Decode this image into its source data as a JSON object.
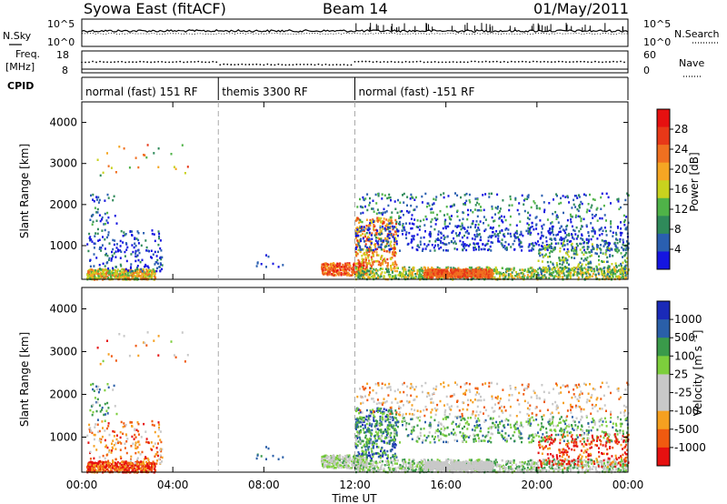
{
  "header": {
    "station": "Syowa East (fitACF)",
    "beam": "Beam 14",
    "date": "01/May/2011"
  },
  "strip_labels": {
    "nsky": "N.Sky",
    "nsearch": "N.Search",
    "freq_line1": "Freq.",
    "freq_line2": "[MHz]",
    "nave": "Nave",
    "cpid": "CPID",
    "nsky_top": "10^5",
    "nsky_bottom": "10^0",
    "nsearch_top": "10^5",
    "nsearch_bottom": "10^0",
    "freq_top": "18",
    "freq_bottom": "8",
    "nave_top": "60",
    "nave_bottom": "0"
  },
  "cpid_segments": [
    {
      "label": "normal (fast) 151 RF",
      "start_hour": 0
    },
    {
      "label": "themis 3300 RF",
      "start_hour": 6
    },
    {
      "label": "normal (fast) -151 RF",
      "start_hour": 12
    }
  ],
  "colors": {
    "power_scale": [
      "#1515e0",
      "#2a5fb0",
      "#2f8a5a",
      "#4fb348",
      "#c8d21e",
      "#f5a623",
      "#f07020",
      "#e83818",
      "#e61010"
    ],
    "velocity_scale": [
      "#e61010",
      "#f05a10",
      "#f5a020",
      "#c8c8c8",
      "#c8c8c8",
      "#7dce3c",
      "#3a9a4a",
      "#2a5fa8",
      "#1a2ab8"
    ]
  },
  "chart_data": [
    {
      "type": "heatmap",
      "panel": "power",
      "xlabel": "",
      "ylabel": "Slant Range [km]",
      "xlim": [
        0,
        24
      ],
      "ylim": [
        180,
        4500
      ],
      "y_ticks": [
        "1000",
        "2000",
        "3000",
        "4000"
      ],
      "colorbar": {
        "label": "Power [dB]",
        "ticks": [
          "4",
          "8",
          "12",
          "16",
          "20",
          "24",
          "28"
        ],
        "range": [
          0,
          32
        ]
      }
    },
    {
      "type": "heatmap",
      "panel": "velocity",
      "xlabel": "Time UT",
      "ylabel": "Slant Range [km]",
      "xlim": [
        0,
        24
      ],
      "ylim": [
        180,
        4500
      ],
      "x_ticks": [
        "00:00",
        "04:00",
        "08:00",
        "12:00",
        "16:00",
        "20:00",
        "00:00"
      ],
      "y_ticks": [
        "1000",
        "2000",
        "3000",
        "4000"
      ],
      "colorbar": {
        "label": "Velocity [m s^-1]",
        "ticks": [
          "1000",
          "500",
          "100",
          "25",
          "-25",
          "-100",
          "-500",
          "-1000"
        ]
      }
    }
  ]
}
